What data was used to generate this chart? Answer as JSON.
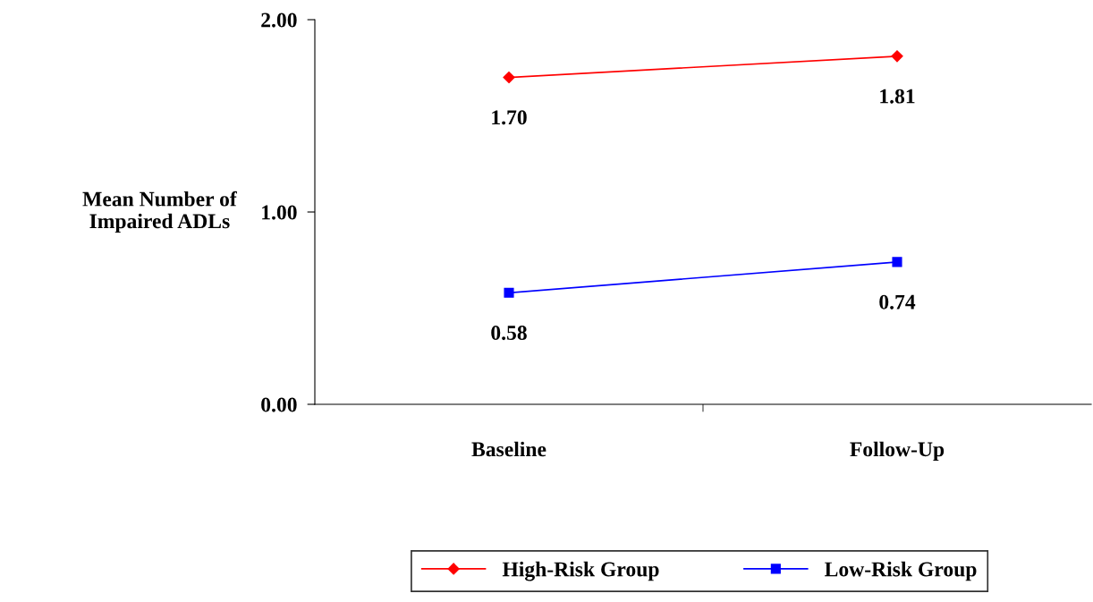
{
  "chart_data": {
    "type": "line",
    "ylabel": "Mean Number of\nImpaired ADLs",
    "categories": [
      "Baseline",
      "Follow-Up"
    ],
    "series": [
      {
        "name": "High-Risk Group",
        "color": "#ff0000",
        "marker": "diamond",
        "values": [
          1.7,
          1.81
        ],
        "value_labels": [
          "1.70",
          "1.81"
        ]
      },
      {
        "name": "Low-Risk Group",
        "color": "#0000ff",
        "marker": "square",
        "values": [
          0.58,
          0.74
        ],
        "value_labels": [
          "0.58",
          "0.74"
        ]
      }
    ],
    "ylim": [
      0,
      2
    ],
    "yticks": [
      {
        "value": 0,
        "label": "0.00"
      },
      {
        "value": 1,
        "label": "1.00"
      },
      {
        "value": 2,
        "label": "2.00"
      }
    ],
    "grid": false,
    "legend": "bottom",
    "line_style": "solid"
  }
}
